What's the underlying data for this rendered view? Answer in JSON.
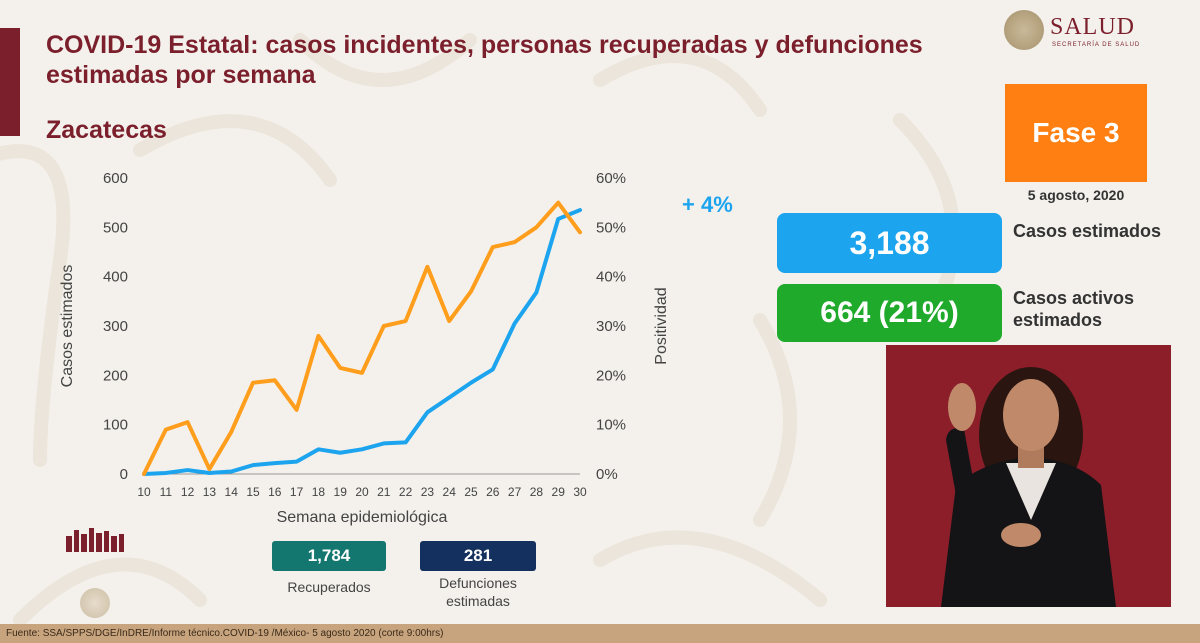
{
  "header": {
    "title": "COVID-19 Estatal: casos incidentes, personas recuperadas y defunciones estimadas por semana",
    "state": "Zacatecas",
    "logo_text": "SALUD",
    "logo_subtext": "SECRETARÍA DE SALUD"
  },
  "status": {
    "phase": "Fase 3",
    "date": "5 agosto, 2020",
    "positivity_change": "+ 4%"
  },
  "kpis": {
    "cases_value": "3,188",
    "cases_label": "Casos estimados",
    "active_value": "664 (21%)",
    "active_label": "Casos activos estimados",
    "recovered_value": "1,784",
    "recovered_label": "Recuperados",
    "deaths_value": "281",
    "deaths_label": "Defunciones estimadas"
  },
  "footer": {
    "source": "Fuente: SSA/SPPS/DGE/InDRE/Informe técnico.COVID-19 /México- 5 agosto 2020 (corte 9:00hrs)"
  },
  "colors": {
    "brand": "#7a1f2b",
    "cases_line": "#1da4ee",
    "positivity_line": "#ff9d1c",
    "phase": "#ff7f13",
    "active": "#1faa2c",
    "recovered": "#13776f",
    "deaths": "#14305e"
  },
  "chart_data": {
    "type": "line",
    "x": [
      10,
      11,
      12,
      13,
      14,
      15,
      16,
      17,
      18,
      19,
      20,
      21,
      22,
      23,
      24,
      25,
      26,
      27,
      28,
      29,
      30
    ],
    "xlabel": "Semana epidemiológica",
    "ylabel": "Casos estimados",
    "y2label": "Positividad",
    "ylim": [
      0,
      600
    ],
    "y2lim": [
      0,
      60
    ],
    "yticks": [
      "0",
      "100",
      "200",
      "300",
      "400",
      "500",
      "600"
    ],
    "y2ticks": [
      "0%",
      "10%",
      "20%",
      "30%",
      "40%",
      "50%",
      "60%"
    ],
    "grid": false,
    "series": [
      {
        "values": [
          0,
          2,
          8,
          2,
          5,
          18,
          22,
          25,
          50,
          43,
          50,
          62,
          64,
          125,
          155,
          185,
          212,
          305,
          368,
          517,
          535
        ]
      },
      {
        "values": [
          0,
          9,
          10.5,
          1,
          8.5,
          18.5,
          19,
          13,
          28,
          21.5,
          20.5,
          30,
          31,
          42,
          31,
          37,
          46,
          47,
          50,
          55,
          49
        ]
      }
    ]
  }
}
